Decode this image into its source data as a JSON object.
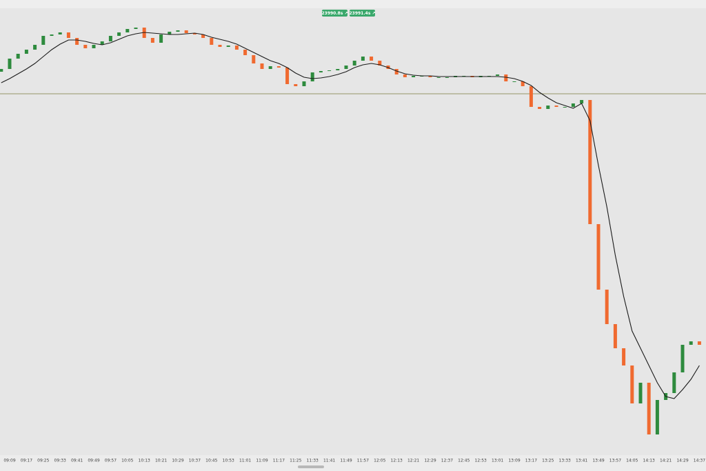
{
  "chart_data": {
    "type": "candlestick",
    "badges": [
      "23990.8s ↗",
      "23991.4s ↗"
    ],
    "categories": [
      null,
      "09:09",
      null,
      "09:17",
      null,
      "09:25",
      null,
      "09:33",
      null,
      "09:41",
      null,
      "09:49",
      null,
      "09:57",
      null,
      "10:05",
      null,
      "10:13",
      null,
      "10:21",
      null,
      "10:29",
      null,
      "10:37",
      null,
      "10:45",
      null,
      "10:53",
      null,
      "11:01",
      null,
      "11:09",
      null,
      "11:17",
      null,
      "11:25",
      null,
      "11:33",
      null,
      "11:41",
      null,
      "11:49",
      null,
      "11:57",
      null,
      "12:05",
      null,
      "12:13",
      null,
      "12:21",
      null,
      "12:29",
      null,
      "12:37",
      null,
      "12:45",
      null,
      "12:53",
      null,
      "13:01",
      null,
      "13:09",
      null,
      "13:17",
      null,
      "13:25",
      null,
      "13:33",
      null,
      "13:41",
      null,
      "13:49",
      null,
      "13:57",
      null,
      "14:05",
      null,
      "14:13",
      null,
      "14:21",
      null,
      "14:29",
      null,
      "14:37"
    ],
    "open": [
      23958,
      23960,
      23967.5,
      23971,
      23974,
      23977.5,
      23984,
      23985,
      23986.5,
      23982.5,
      23977.5,
      23975,
      23977.5,
      23980,
      23984,
      23986.5,
      23989,
      23990,
      23982.5,
      23979,
      23985,
      23987,
      23988,
      23986,
      23985,
      23982.5,
      23977.5,
      23976,
      23977,
      23974,
      23970,
      23964,
      23960,
      23962,
      23961,
      23949,
      23947.5,
      23951,
      23957.5,
      23958.5,
      23959,
      23960,
      23962.5,
      23966,
      23969,
      23966,
      23962.5,
      23960,
      23956,
      23954,
      23955,
      23955,
      23954,
      23954,
      23954,
      23955,
      23955,
      23954,
      23955,
      23955,
      23956,
      23951,
      23951,
      23947.5,
      23932.5,
      23931,
      23933.5,
      23932.5,
      23932.5,
      23935,
      23937.5,
      23847.5,
      23800,
      23775,
      23757.5,
      23745,
      23717.5,
      23732.5,
      23695,
      23720,
      23725,
      23740,
      23760,
      23762.5
    ],
    "close": [
      23960,
      23967.5,
      23971,
      23974,
      23977.5,
      23984,
      23985,
      23986.5,
      23982.5,
      23977.5,
      23975,
      23977.5,
      23980,
      23984,
      23986.5,
      23989,
      23990,
      23982.5,
      23979,
      23985,
      23987,
      23988,
      23986,
      23985,
      23982.5,
      23977.5,
      23976,
      23977,
      23974,
      23970,
      23964,
      23960,
      23962,
      23961,
      23949,
      23947.5,
      23951,
      23957.5,
      23958.5,
      23959,
      23960,
      23962.5,
      23966,
      23969,
      23966,
      23962.5,
      23960,
      23956,
      23954,
      23955,
      23955,
      23954,
      23954,
      23954,
      23955,
      23955,
      23954,
      23955,
      23955,
      23956,
      23951,
      23951,
      23947.5,
      23932.5,
      23931,
      23933.5,
      23932.5,
      23932.5,
      23935,
      23937.5,
      23847.5,
      23800,
      23775,
      23757.5,
      23745,
      23717.5,
      23732.5,
      23695,
      23720,
      23725,
      23740,
      23760,
      23762.5,
      23760
    ],
    "ma": {
      "color": "#1a1a1a",
      "values": [
        23950,
        23953,
        23956.5,
        23960,
        23964,
        23969,
        23974,
        23978,
        23981,
        23981,
        23980,
        23978.5,
        23977.5,
        23979,
        23981.5,
        23984,
        23985.5,
        23986.5,
        23986,
        23985.5,
        23985,
        23985,
        23985.5,
        23986,
        23985,
        23983,
        23981.5,
        23980,
        23978,
        23975,
        23972,
        23969,
        23966,
        23964,
        23961,
        23957,
        23954,
        23953,
        23953.5,
        23954.5,
        23956,
        23958,
        23961,
        23963,
        23964,
        23963,
        23961,
        23958.5,
        23956.5,
        23955.5,
        23955,
        23955,
        23954.5,
        23954.5,
        23954.5,
        23954.5,
        23954.5,
        23954.5,
        23954.5,
        23954.5,
        23954,
        23953,
        23951,
        23948,
        23943,
        23939,
        23935.5,
        23933.5,
        23931.5,
        23935,
        23922.5,
        23890,
        23860,
        23825,
        23795,
        23770,
        23757.5,
        23745,
        23732.5,
        23722.5,
        23721,
        23727.5,
        23735,
        23745
      ]
    },
    "hline": 23942,
    "hline_color": "#7a7a3a",
    "up_color": "#2e8b3e",
    "down_color": "#f06a30",
    "ylim": [
      23680,
      24004
    ]
  }
}
